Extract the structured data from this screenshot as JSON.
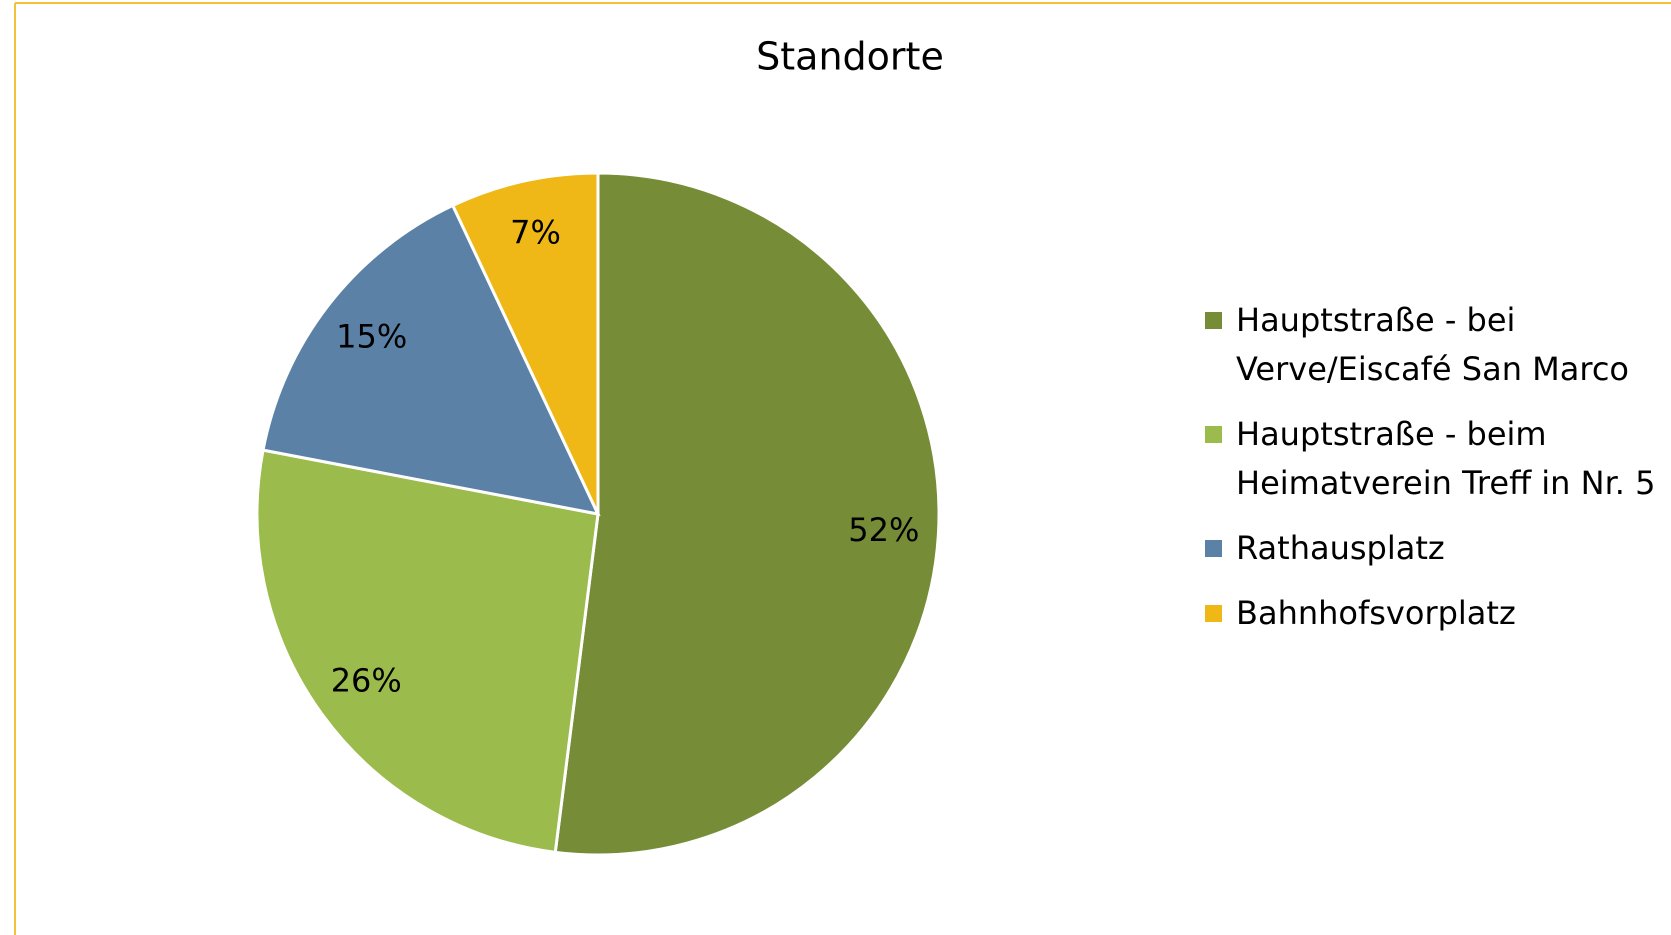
{
  "chart_data": {
    "type": "pie",
    "title": "Standorte",
    "categories": [
      "Hauptstraße - bei Verve/Eiscafé San Marco",
      "Hauptstraße - beim Heimatverein Treff in Nr. 5",
      "Rathausplatz",
      "Bahnhofsvorplatz"
    ],
    "values": [
      52,
      26,
      15,
      7
    ],
    "value_labels": [
      "52%",
      "26%",
      "15%",
      "7%"
    ],
    "colors": [
      "#768c37",
      "#9bbb4c",
      "#5b82a6",
      "#efb816"
    ],
    "legend": "right"
  }
}
